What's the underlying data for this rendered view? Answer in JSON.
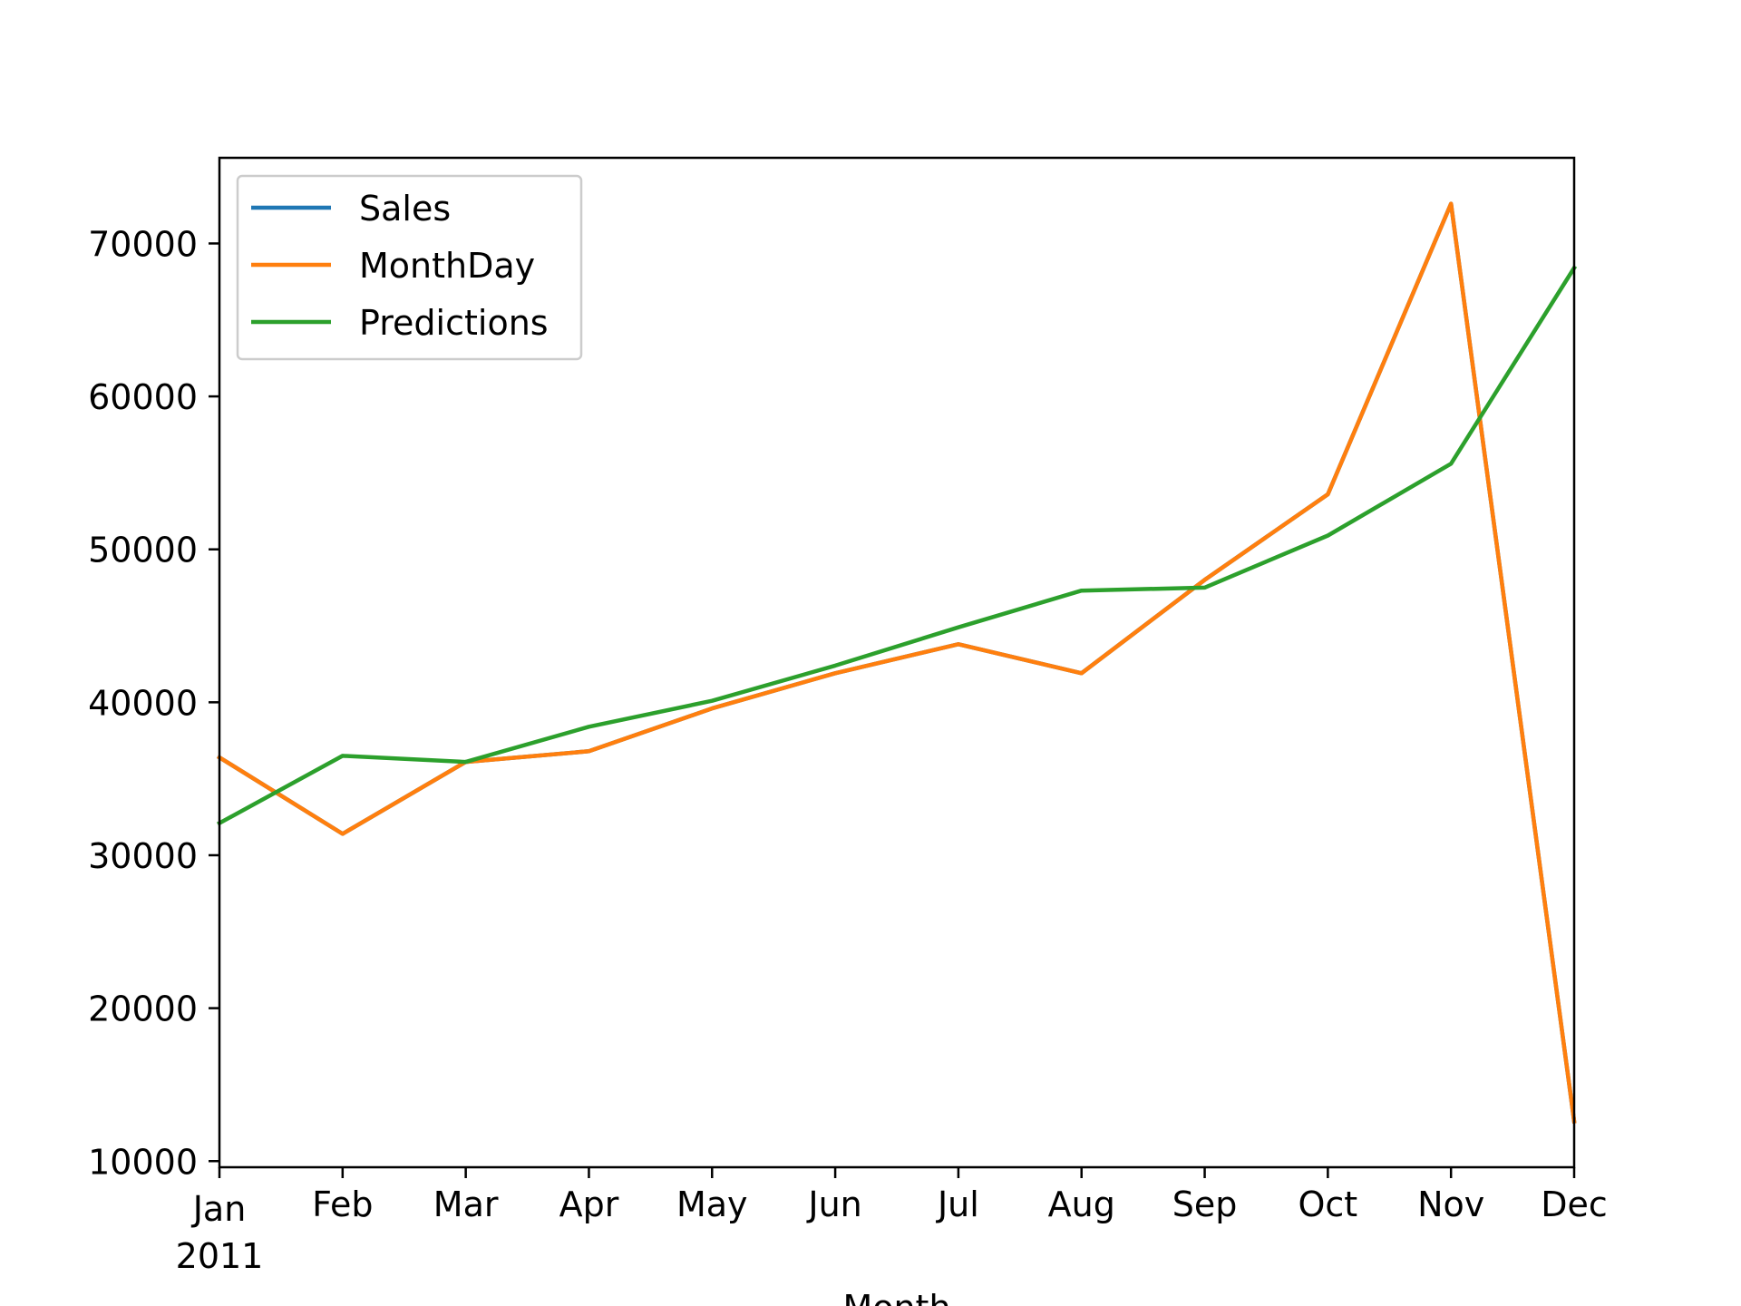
{
  "chart_data": {
    "type": "line",
    "xlabel": "Month",
    "x_year_label": "2011",
    "categories": [
      "Jan",
      "Feb",
      "Mar",
      "Apr",
      "May",
      "Jun",
      "Jul",
      "Aug",
      "Sep",
      "Oct",
      "Nov",
      "Dec"
    ],
    "ylim": [
      9600,
      75600
    ],
    "yticks": [
      10000,
      20000,
      30000,
      40000,
      50000,
      60000,
      70000
    ],
    "grid": false,
    "legend_position": "top-left",
    "series": [
      {
        "name": "Sales",
        "color": "#1f77b4",
        "values": [
          36400,
          31400,
          36100,
          36800,
          39600,
          41900,
          43800,
          41900,
          48000,
          53600,
          72600,
          12600
        ]
      },
      {
        "name": "MonthDay",
        "color": "#ff7f0e",
        "values": [
          36400,
          31400,
          36100,
          36800,
          39600,
          41900,
          43800,
          41900,
          48000,
          53600,
          72600,
          12600
        ]
      },
      {
        "name": "Predictions",
        "color": "#2ca02c",
        "values": [
          32100,
          36500,
          36100,
          38400,
          40100,
          42400,
          44900,
          47300,
          47500,
          50900,
          55600,
          68400
        ]
      }
    ]
  }
}
